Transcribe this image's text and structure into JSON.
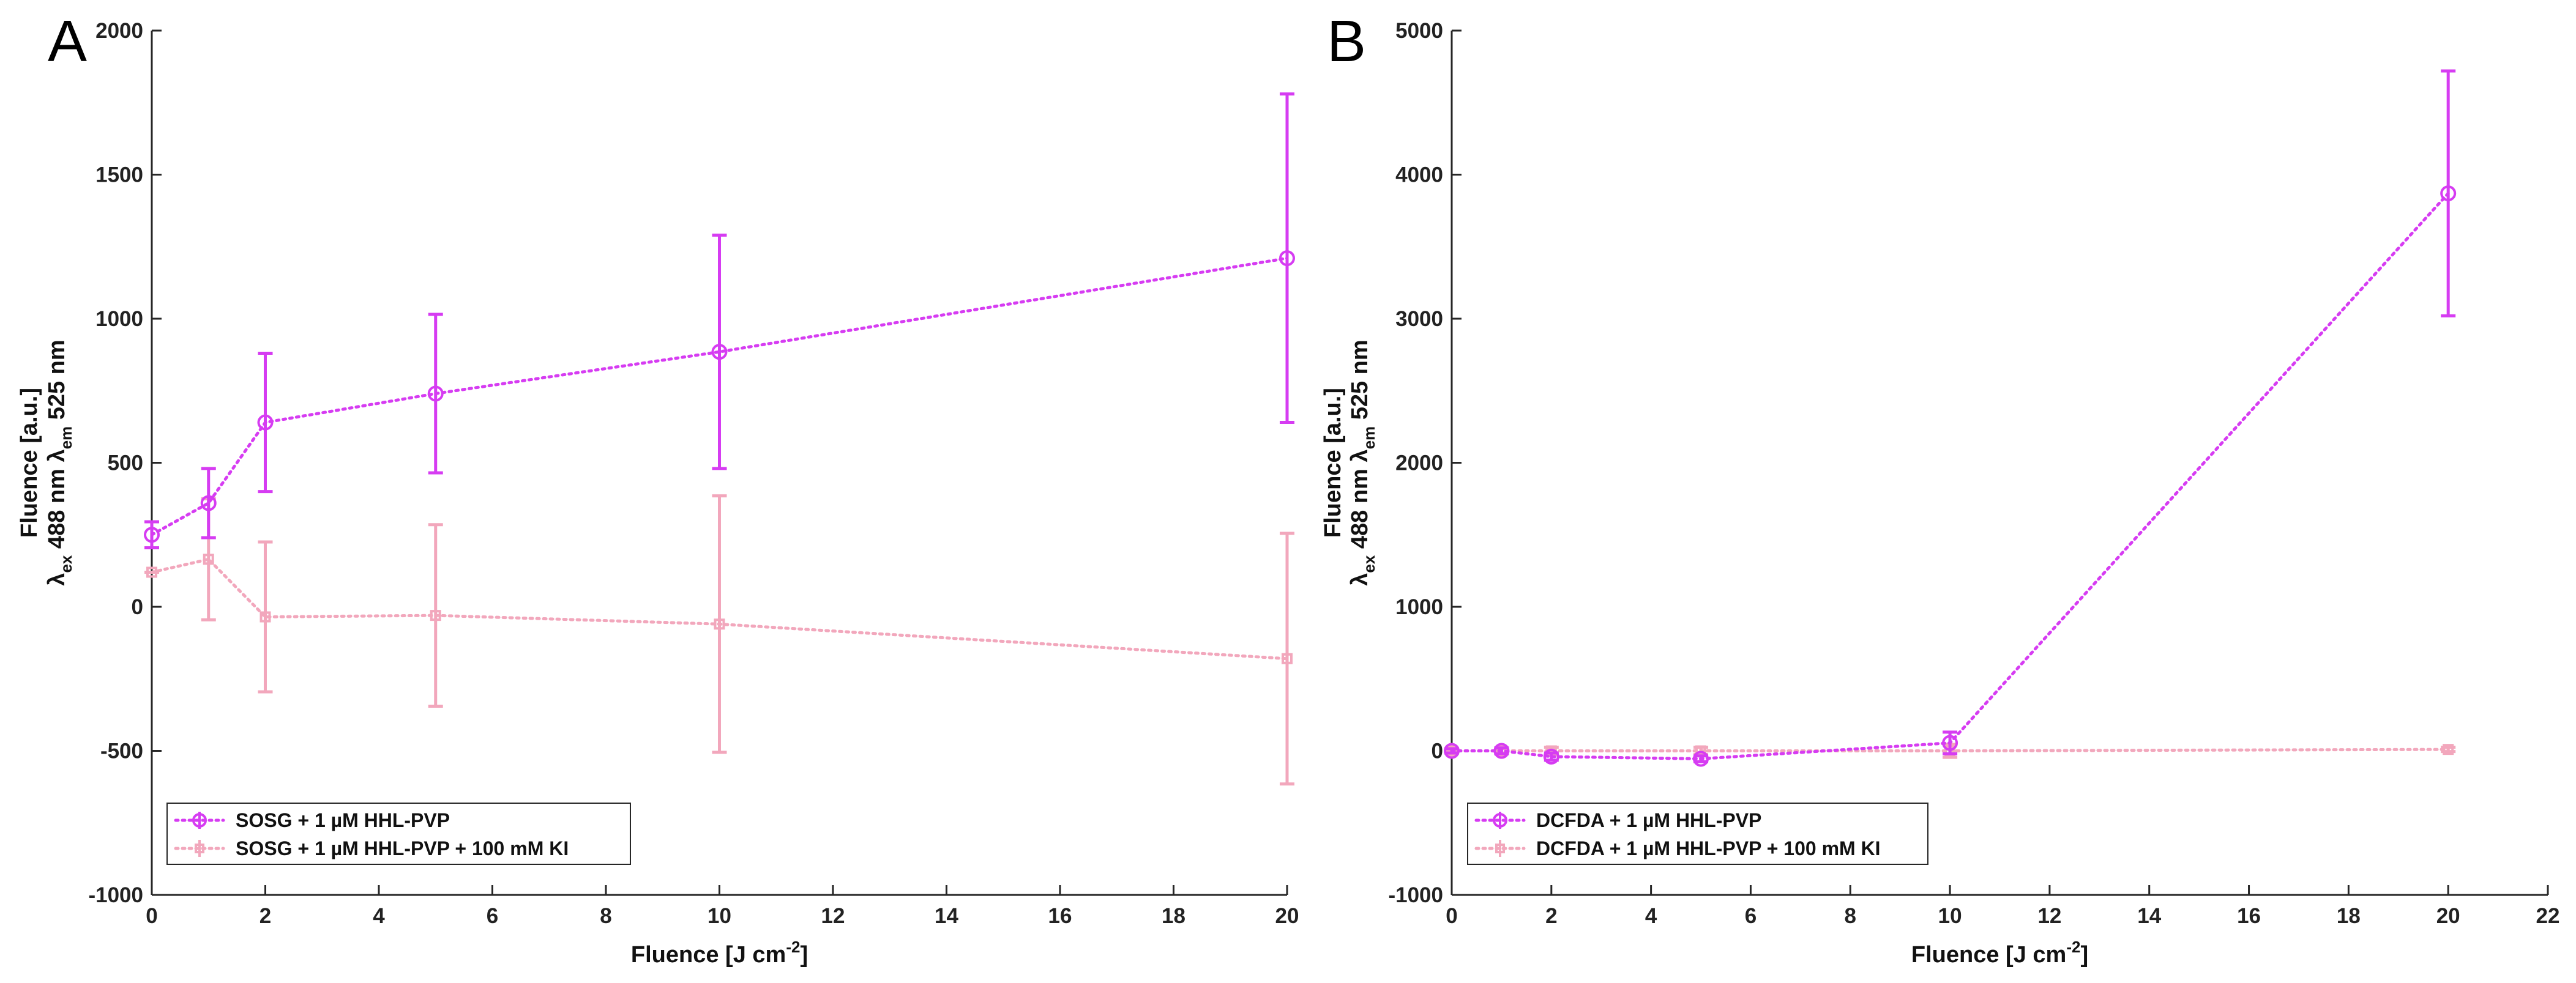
{
  "colors": {
    "series_main": "#D63CF2",
    "series_control": "#F2A7BC",
    "axis": "#262626"
  },
  "chart_data": [
    {
      "panel": "A",
      "type": "line",
      "xlabel": {
        "main": "Fluence [J cm",
        "sup": "-2",
        "end": "]"
      },
      "ylabel": {
        "line1": "Fluence [a.u.]",
        "lam1": "λ",
        "sub1": "ex",
        "mid": " 488 nm λ",
        "sub2": "em",
        "end": " 525 nm"
      },
      "xlim": [
        0,
        20
      ],
      "ylim": [
        -1000,
        2000
      ],
      "xticks": [
        0,
        2,
        4,
        6,
        8,
        10,
        12,
        14,
        16,
        18,
        20
      ],
      "yticks": [
        -1000,
        -500,
        0,
        500,
        1000,
        1500,
        2000
      ],
      "legend_position": "bottom-left",
      "series": [
        {
          "name": "SOSG + 1 µM HHL-PVP",
          "color_key": "series_main",
          "marker": "circle",
          "x": [
            0,
            1,
            2,
            5,
            10,
            20
          ],
          "y": [
            250,
            360,
            640,
            740,
            885,
            1210
          ],
          "err": [
            45,
            120,
            240,
            275,
            405,
            570
          ]
        },
        {
          "name": "SOSG + 1 µM HHL-PVP + 100 mM KI",
          "color_key": "series_control",
          "marker": "square",
          "x": [
            0,
            1,
            2,
            5,
            10,
            20
          ],
          "y": [
            120,
            165,
            -35,
            -30,
            -60,
            -180
          ],
          "err": [
            0,
            210,
            260,
            315,
            445,
            435
          ]
        }
      ]
    },
    {
      "panel": "B",
      "type": "line",
      "xlabel": {
        "main": "Fluence [J cm",
        "sup": "-2",
        "end": "]"
      },
      "ylabel": {
        "line1": "Fluence [a.u.]",
        "lam1": "λ",
        "sub1": "ex",
        "mid": " 488 nm λ",
        "sub2": "em",
        "end": " 525 nm"
      },
      "xlim": [
        0,
        22
      ],
      "ylim": [
        -1000,
        5000
      ],
      "xticks": [
        0,
        2,
        4,
        6,
        8,
        10,
        12,
        14,
        16,
        18,
        20,
        22
      ],
      "yticks": [
        -1000,
        0,
        1000,
        2000,
        3000,
        4000,
        5000
      ],
      "legend_position": "bottom-left",
      "series": [
        {
          "name": "DCFDA + 1 µM HHL-PVP",
          "color_key": "series_main",
          "marker": "circle",
          "x": [
            0,
            1,
            2,
            5,
            10,
            20
          ],
          "y": [
            0,
            0,
            -40,
            -55,
            55,
            3870
          ],
          "err": [
            15,
            20,
            25,
            20,
            75,
            850
          ]
        },
        {
          "name": "DCFDA + 1 µM HHL-PVP + 100 mM KI",
          "color_key": "series_control",
          "marker": "square",
          "x": [
            0,
            1,
            2,
            5,
            10,
            20
          ],
          "y": [
            0,
            0,
            0,
            0,
            0,
            10
          ],
          "err": [
            10,
            15,
            25,
            25,
            45,
            15
          ]
        }
      ]
    }
  ]
}
